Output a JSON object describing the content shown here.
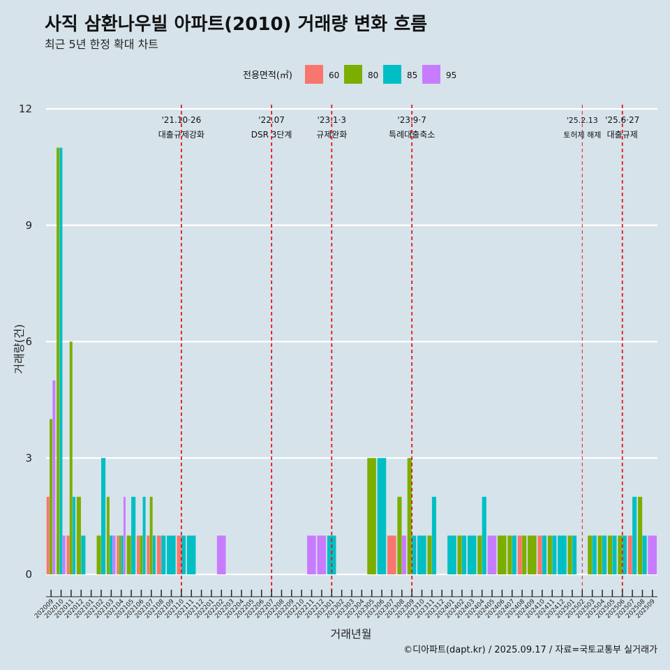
{
  "title": "사직 삼환나우빌 아파트(2010) 거래량 변화 흐름",
  "subtitle": "최근 5년 한정 확대 차트",
  "caption": "©디아파트(dapt.kr) / 2025.09.17 / 자료=국토교통부 실거래가",
  "legend": {
    "title": "전용면적(㎡)",
    "items": [
      {
        "label": "60",
        "color": "#f8766d"
      },
      {
        "label": "80",
        "color": "#7cae00"
      },
      {
        "label": "85",
        "color": "#00bfc4"
      },
      {
        "label": "95",
        "color": "#c77cff"
      }
    ]
  },
  "chart_data": {
    "type": "bar",
    "title": "사직 삼환나우빌 아파트(2010) 거래량 변화 흐름",
    "subtitle": "최근 5년 한정 확대 차트",
    "xlabel": "거래년월",
    "ylabel": "거래량(건)",
    "ylim": [
      0,
      12
    ],
    "yticks": [
      0,
      3,
      6,
      9,
      12
    ],
    "grid": "horizontal",
    "legend_position": "top",
    "categories": [
      "202009",
      "202010",
      "202011",
      "202012",
      "202101",
      "202102",
      "202103",
      "202104",
      "202105",
      "202106",
      "202107",
      "202108",
      "202109",
      "202110",
      "202111",
      "202112",
      "202201",
      "202202",
      "202203",
      "202204",
      "202205",
      "202206",
      "202207",
      "202208",
      "202209",
      "202210",
      "202211",
      "202212",
      "202301",
      "202302",
      "202303",
      "202304",
      "202305",
      "202306",
      "202307",
      "202308",
      "202309",
      "202310",
      "202311",
      "202312",
      "202401",
      "202402",
      "202403",
      "202404",
      "202405",
      "202406",
      "202407",
      "202408",
      "202409",
      "202410",
      "202411",
      "202412",
      "202501",
      "202502",
      "202503",
      "202504",
      "202505",
      "202506",
      "202507",
      "202508",
      "202509"
    ],
    "series": [
      {
        "name": "60",
        "color": "#f8766d",
        "values": [
          2,
          0,
          1,
          0,
          0,
          0,
          0,
          1,
          0,
          1,
          1,
          1,
          0,
          1,
          0,
          0,
          0,
          0,
          0,
          0,
          0,
          0,
          0,
          0,
          0,
          0,
          0,
          0,
          0,
          0,
          0,
          0,
          0,
          0,
          1,
          0,
          0,
          0,
          0,
          0,
          0,
          0,
          0,
          0,
          0,
          0,
          0,
          1,
          0,
          1,
          0,
          0,
          0,
          0,
          0,
          0,
          0,
          0,
          1,
          0,
          0
        ]
      },
      {
        "name": "80",
        "color": "#7cae00",
        "values": [
          4,
          11,
          6,
          2,
          0,
          1,
          2,
          1,
          1,
          1,
          2,
          0,
          0,
          0,
          0,
          0,
          0,
          0,
          0,
          0,
          0,
          0,
          0,
          0,
          0,
          0,
          0,
          0,
          0,
          0,
          0,
          0,
          3,
          0,
          0,
          2,
          3,
          0,
          1,
          0,
          0,
          1,
          0,
          1,
          0,
          1,
          1,
          1,
          1,
          0,
          1,
          0,
          1,
          0,
          1,
          1,
          1,
          1,
          0,
          2,
          0
        ]
      },
      {
        "name": "85",
        "color": "#00bfc4",
        "values": [
          0,
          11,
          2,
          1,
          0,
          3,
          1,
          1,
          2,
          2,
          1,
          1,
          1,
          1,
          1,
          0,
          0,
          0,
          0,
          0,
          0,
          0,
          0,
          0,
          0,
          0,
          0,
          0,
          1,
          0,
          0,
          0,
          0,
          3,
          0,
          0,
          1,
          1,
          2,
          0,
          1,
          1,
          1,
          2,
          0,
          0,
          1,
          0,
          0,
          1,
          1,
          1,
          1,
          0,
          1,
          1,
          1,
          1,
          2,
          1,
          0
        ]
      },
      {
        "name": "95",
        "color": "#c77cff",
        "values": [
          5,
          1,
          0,
          0,
          0,
          0,
          1,
          2,
          0,
          0,
          0,
          0,
          0,
          0,
          0,
          0,
          0,
          1,
          0,
          0,
          0,
          0,
          0,
          0,
          0,
          0,
          1,
          1,
          0,
          0,
          0,
          0,
          0,
          0,
          0,
          1,
          0,
          0,
          0,
          0,
          0,
          0,
          0,
          0,
          1,
          0,
          0,
          0,
          0,
          0,
          0,
          0,
          0,
          0,
          0,
          0,
          0,
          0,
          0,
          0,
          1
        ]
      }
    ],
    "events": [
      {
        "date": "'21.10·26",
        "label": "대출규제강화",
        "month": "202110"
      },
      {
        "date": "'22.07",
        "label": "DSR 3단계",
        "month": "202207"
      },
      {
        "date": "'23.1·3",
        "label": "규제완화",
        "month": "202301"
      },
      {
        "date": "'23.9·7",
        "label": "특례대출축소",
        "month": "202309"
      },
      {
        "date": "'25.2.13",
        "label": "토허제 해제",
        "month": "202502"
      },
      {
        "date": "'25.6·27",
        "label": "대출규제",
        "month": "202506"
      }
    ]
  }
}
